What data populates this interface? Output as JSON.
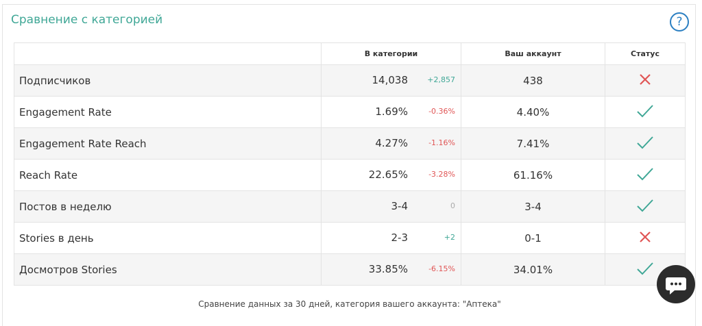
{
  "header": {
    "title": "Сравнение с категорией",
    "help": "?"
  },
  "table": {
    "headers": [
      "В категории",
      "Ваш аккаунт",
      "Статус"
    ],
    "rows": [
      {
        "label": "Подписчиков",
        "category": "14,038",
        "delta": "+2,857",
        "account": "438"
      },
      {
        "label": "Engagement Rate",
        "category": "1.69%",
        "delta": "-0.36%",
        "account": "4.40%"
      },
      {
        "label": "Engagement Rate Reach",
        "category": "4.27%",
        "delta": "-1.16%",
        "account": "7.41%"
      },
      {
        "label": "Reach Rate",
        "category": "22.65%",
        "delta": "-3.28%",
        "account": "61.16%"
      },
      {
        "label": "Постов в неделю",
        "category": "3-4",
        "delta": "0",
        "account": "3-4"
      },
      {
        "label": "Stories в день",
        "category": "2-3",
        "delta": "+2",
        "account": "0-1"
      },
      {
        "label": "Досмотров Stories",
        "category": "33.85%",
        "delta": "-6.15%",
        "account": "34.01%"
      }
    ]
  },
  "footer": "Сравнение данных за 30 дней, категория вашего аккаунта: \"Аптека\""
}
